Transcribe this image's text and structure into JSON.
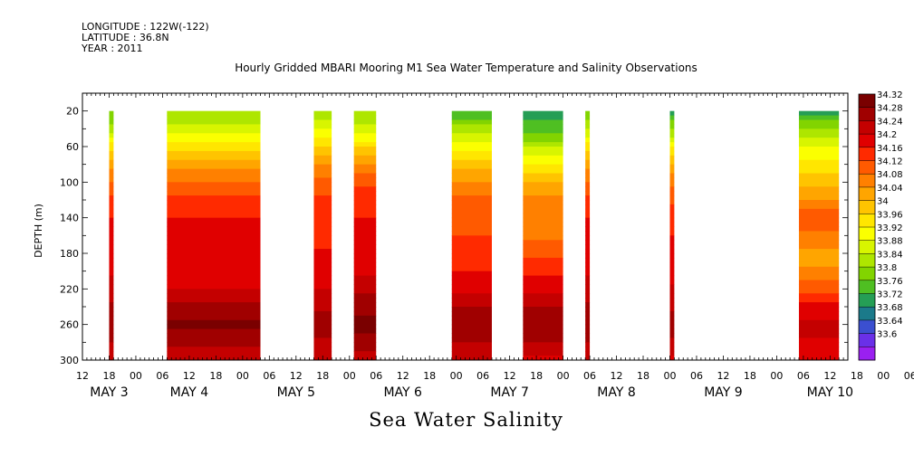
{
  "meta": {
    "longitude": "LONGITUDE : 122W(-122)",
    "latitude": "LATITUDE : 36.8N",
    "year": "YEAR : 2011"
  },
  "chart_data": {
    "type": "heatmap",
    "title": "Hourly Gridded MBARI Mooring M1 Sea Water Temperature and Salinity Observations",
    "xlabel": "Sea Water Salinity",
    "ylabel": "DEPTH (m)",
    "ylim": [
      300,
      0
    ],
    "x_range_hours": [
      0,
      172
    ],
    "yticks": [
      20,
      60,
      100,
      140,
      180,
      220,
      260,
      300
    ],
    "hour_ticks": [
      "12",
      "18",
      "00",
      "06",
      "12",
      "18",
      "00",
      "06",
      "12",
      "18",
      "00",
      "06",
      "12",
      "18",
      "00",
      "06",
      "12",
      "18",
      "00",
      "06",
      "12",
      "18",
      "00",
      "06",
      "12",
      "18",
      "00",
      "06",
      "12",
      "18",
      "00",
      "06",
      "12",
      "18",
      "00",
      "06"
    ],
    "day_labels": [
      "MAY  3",
      "MAY  4",
      "MAY  5",
      "MAY  6",
      "MAY  7",
      "MAY  8",
      "MAY  9",
      "MAY 10"
    ],
    "colorbar": {
      "levels": [
        "34.32",
        "34.28",
        "34.24",
        "34.2",
        "34.16",
        "34.12",
        "34.08",
        "34.04",
        "34",
        "33.96",
        "33.92",
        "33.88",
        "33.84",
        "33.8",
        "33.76",
        "33.72",
        "33.68",
        "33.64",
        "33.6"
      ],
      "colors": [
        "#7a0000",
        "#a00000",
        "#c40000",
        "#e00000",
        "#ff2a00",
        "#ff5a00",
        "#ff8000",
        "#ffa500",
        "#ffc400",
        "#ffe600",
        "#fbff00",
        "#d8f500",
        "#aee600",
        "#82d400",
        "#4fbf22",
        "#259e55",
        "#1b7a8a",
        "#3b4fd0",
        "#6a30e8",
        "#9a20f0"
      ]
    },
    "profile_depths": [
      20,
      40,
      60,
      80,
      100,
      120,
      140,
      160,
      180,
      200,
      220,
      240,
      260,
      280,
      300
    ],
    "segments": [
      {
        "start_h": 6,
        "end_h": 7,
        "profile": [
          33.8,
          33.84,
          33.96,
          34.04,
          34.1,
          34.14,
          34.17,
          34.18,
          34.19,
          34.2,
          34.22,
          34.25,
          34.28,
          34.24,
          34.22
        ]
      },
      {
        "start_h": 19,
        "end_h": 40,
        "profile": [
          33.82,
          33.88,
          33.96,
          34.04,
          34.1,
          34.14,
          34.17,
          34.18,
          34.17,
          34.18,
          34.21,
          34.25,
          34.29,
          34.25,
          34.21
        ]
      },
      {
        "start_h": 52,
        "end_h": 56,
        "profile": [
          33.84,
          33.9,
          33.98,
          34.06,
          34.11,
          34.14,
          34.16,
          34.16,
          34.17,
          34.18,
          34.21,
          34.24,
          34.27,
          34.24,
          34.21
        ]
      },
      {
        "start_h": 61,
        "end_h": 66,
        "profile": [
          33.82,
          33.88,
          33.97,
          34.06,
          34.12,
          34.15,
          34.17,
          34.18,
          34.18,
          34.2,
          34.23,
          34.27,
          34.3,
          34.26,
          34.23
        ]
      },
      {
        "start_h": 83,
        "end_h": 92,
        "profile": [
          33.74,
          33.84,
          33.92,
          34.0,
          34.06,
          34.1,
          34.12,
          34.13,
          34.15,
          34.17,
          34.2,
          34.24,
          34.28,
          34.24,
          34.21
        ]
      },
      {
        "start_h": 99,
        "end_h": 108,
        "profile": [
          33.74,
          33.76,
          33.86,
          33.94,
          34.02,
          34.06,
          34.08,
          34.08,
          34.12,
          34.16,
          34.2,
          34.24,
          34.28,
          34.24,
          34.2
        ]
      },
      {
        "start_h": 113,
        "end_h": 114,
        "profile": [
          33.8,
          33.86,
          33.96,
          34.04,
          34.1,
          34.14,
          34.17,
          34.18,
          34.19,
          34.2,
          34.22,
          34.25,
          34.28,
          34.24,
          34.21
        ]
      },
      {
        "start_h": 132,
        "end_h": 133,
        "profile": [
          33.74,
          33.82,
          33.94,
          34.02,
          34.08,
          34.12,
          34.15,
          34.17,
          34.18,
          34.19,
          34.21,
          34.24,
          34.27,
          34.23,
          34.2
        ]
      },
      {
        "start_h": 161,
        "end_h": 170,
        "profile": [
          33.74,
          33.82,
          33.9,
          33.96,
          34.0,
          34.06,
          34.12,
          34.08,
          34.04,
          34.06,
          34.12,
          34.18,
          34.22,
          34.2,
          34.18
        ]
      }
    ]
  }
}
